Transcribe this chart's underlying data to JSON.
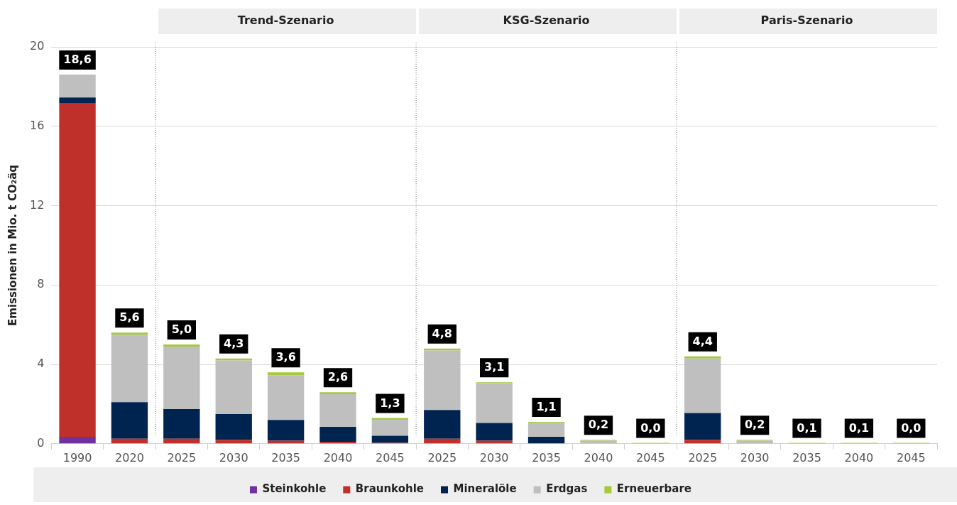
{
  "chart_data": {
    "type": "bar",
    "stacked": true,
    "ylabel": "Emissionen in Mio. t CO₂äq",
    "categories": [
      "1990",
      "2020",
      "2025",
      "2030",
      "2035",
      "2040",
      "2045",
      "2025",
      "2030",
      "2035",
      "2040",
      "2045",
      "2025",
      "2030",
      "2035",
      "2040",
      "2045"
    ],
    "series": [
      {
        "name": "Steinkohle",
        "color": "#7030a0",
        "values": [
          0.35,
          0,
          0,
          0,
          0,
          0,
          0,
          0,
          0,
          0,
          0,
          0,
          0,
          0,
          0,
          0,
          0
        ]
      },
      {
        "name": "Braunkohle",
        "color": "#c0302a",
        "values": [
          16.8,
          0.25,
          0.25,
          0.2,
          0.15,
          0.1,
          0.05,
          0.25,
          0.15,
          0,
          0,
          0,
          0.2,
          0,
          0,
          0,
          0
        ]
      },
      {
        "name": "Mineralöle",
        "color": "#002450",
        "values": [
          0.3,
          1.85,
          1.5,
          1.3,
          1.05,
          0.75,
          0.35,
          1.45,
          0.9,
          0.35,
          0,
          0,
          1.35,
          0,
          0,
          0,
          0
        ]
      },
      {
        "name": "Erdgas",
        "color": "#bfbfbf",
        "values": [
          1.15,
          3.4,
          3.15,
          2.7,
          2.25,
          1.65,
          0.8,
          3.0,
          2.0,
          0.7,
          0.15,
          0,
          2.75,
          0.15,
          0,
          0,
          0
        ]
      },
      {
        "name": "Erneuerbare",
        "color": "#a6c83c",
        "values": [
          0,
          0.1,
          0.1,
          0.1,
          0.15,
          0.1,
          0.1,
          0.1,
          0.05,
          0.05,
          0.05,
          0.05,
          0.1,
          0.05,
          0.05,
          0.05,
          0.05
        ]
      }
    ],
    "totals": [
      "18,6",
      "5,6",
      "5,0",
      "4,3",
      "3,6",
      "2,6",
      "1,3",
      "4,8",
      "3,1",
      "1,1",
      "0,2",
      "0,0",
      "4,4",
      "0,2",
      "0,1",
      "0,1",
      "0,0"
    ],
    "annotations": [
      "Trend-Szenario",
      "KSG-Szenario",
      "Paris-Szenario"
    ],
    "ylim": [
      0,
      20
    ],
    "yticks": [
      0,
      4,
      8,
      12,
      16,
      20
    ],
    "grid": "y",
    "legend": "bottom"
  }
}
